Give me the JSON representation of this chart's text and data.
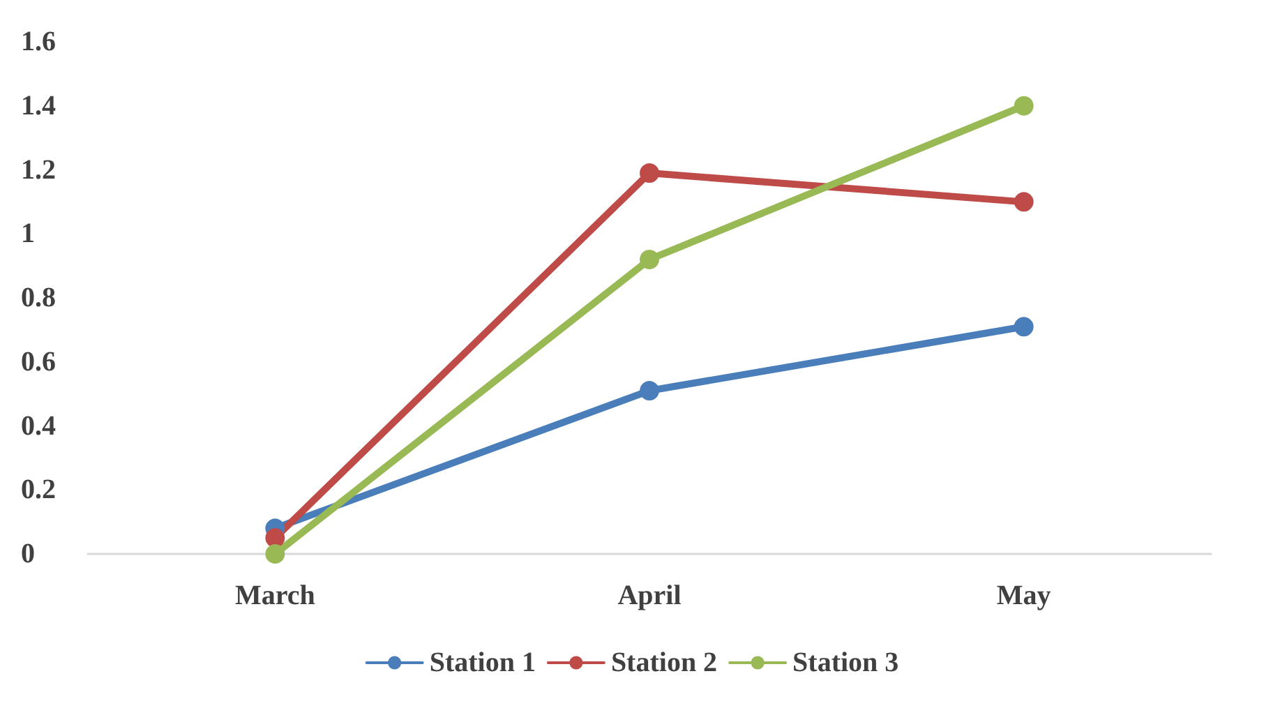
{
  "chart_data": {
    "type": "line",
    "categories": [
      "March",
      "April",
      "May"
    ],
    "series": [
      {
        "name": "Station 1",
        "color": "#4a7ebb",
        "values": [
          0.08,
          0.51,
          0.71
        ]
      },
      {
        "name": "Station 2",
        "color": "#be4b48",
        "values": [
          0.05,
          1.19,
          1.1
        ]
      },
      {
        "name": "Station 3",
        "color": "#98b954",
        "values": [
          0,
          0.92,
          1.4
        ]
      }
    ],
    "ylim": [
      0,
      1.6
    ],
    "yticks": [
      0,
      0.2,
      0.4,
      0.6,
      0.8,
      1,
      1.2,
      1.4,
      1.6
    ],
    "grid": false,
    "legend": "bottom",
    "marker": "circle",
    "line_style": "solid"
  }
}
